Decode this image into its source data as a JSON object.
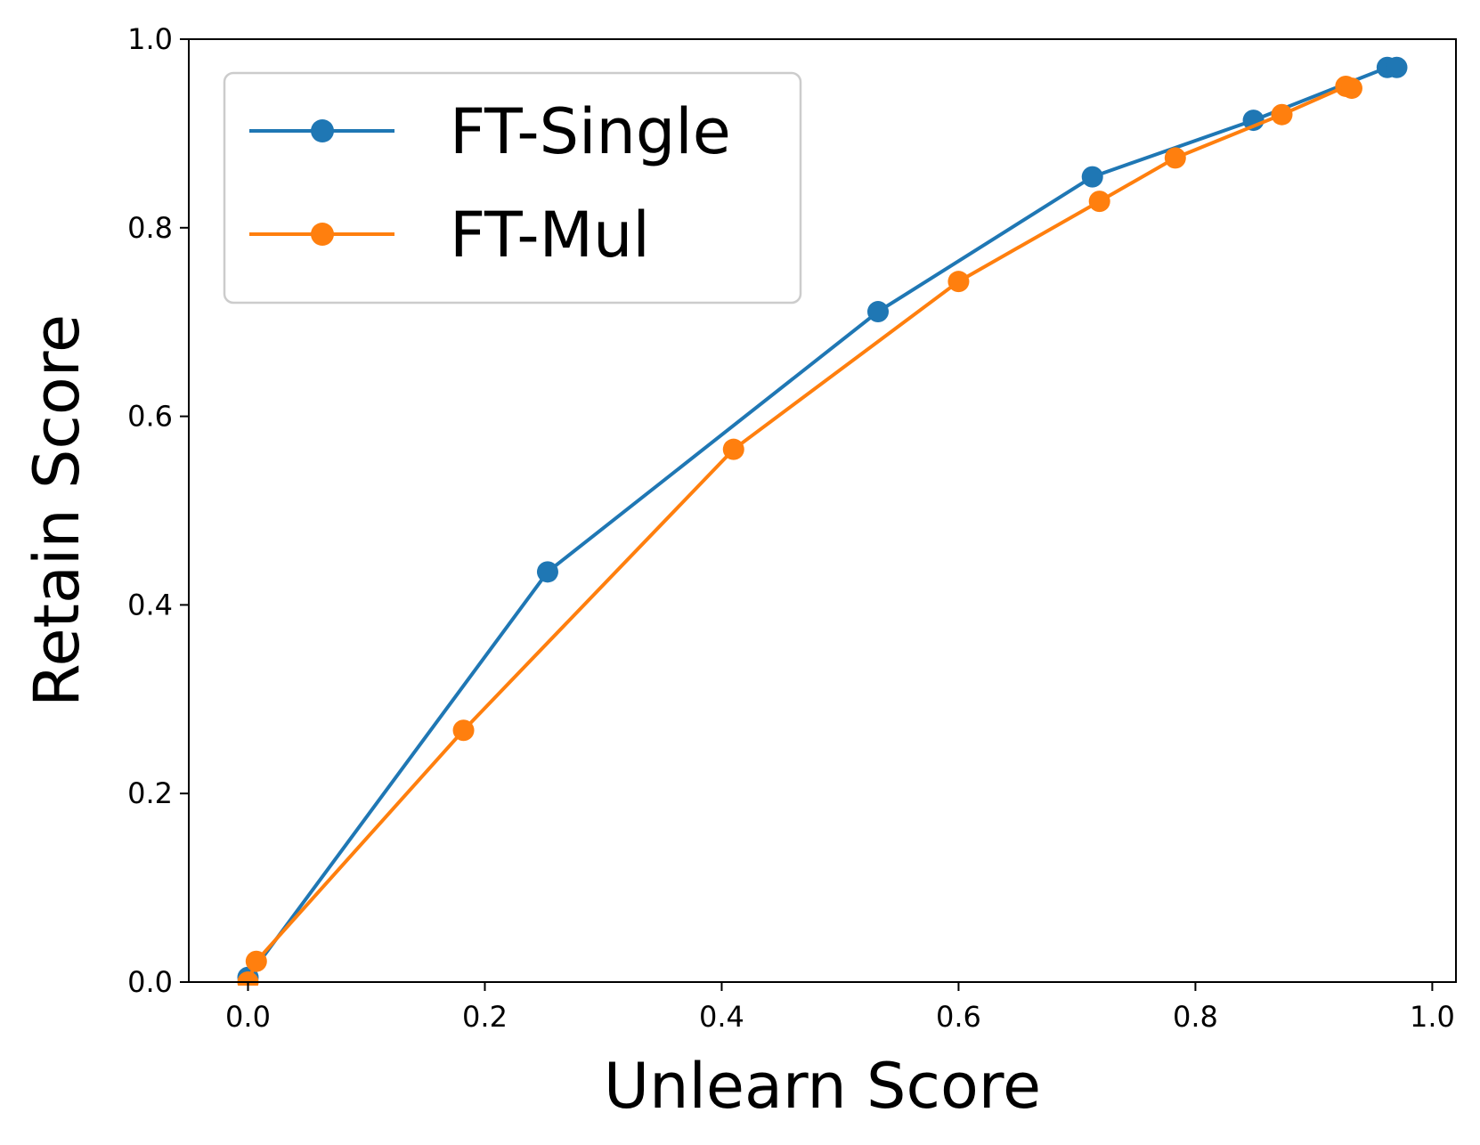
{
  "chart_data": {
    "type": "line",
    "xlabel": "Unlearn Score",
    "ylabel": "Retain Score",
    "xlim": [
      -0.05,
      1.02
    ],
    "ylim": [
      0.0,
      1.0
    ],
    "x_ticks": [
      0.0,
      0.2,
      0.4,
      0.6,
      0.8,
      1.0
    ],
    "y_ticks": [
      0.0,
      0.2,
      0.4,
      0.6,
      0.8,
      1.0
    ],
    "x_tick_labels": [
      "0.0",
      "0.2",
      "0.4",
      "0.6",
      "0.8",
      "1.0"
    ],
    "y_tick_labels": [
      "0.0",
      "0.2",
      "0.4",
      "0.6",
      "0.8",
      "1.0"
    ],
    "grid": false,
    "legend_position": "top-left",
    "series": [
      {
        "name": "FT-Single",
        "color": "#1f77b4",
        "marker": "circle",
        "x": [
          0.0,
          0.253,
          0.532,
          0.713,
          0.849,
          0.962,
          0.97
        ],
        "y": [
          0.005,
          0.435,
          0.711,
          0.854,
          0.914,
          0.97,
          0.97
        ]
      },
      {
        "name": "FT-Mul",
        "color": "#ff7f0e",
        "marker": "circle",
        "x": [
          0.0,
          0.007,
          0.182,
          0.41,
          0.6,
          0.719,
          0.783,
          0.873,
          0.927,
          0.932
        ],
        "y": [
          0.0,
          0.022,
          0.267,
          0.565,
          0.743,
          0.828,
          0.874,
          0.92,
          0.95,
          0.948
        ]
      }
    ]
  }
}
